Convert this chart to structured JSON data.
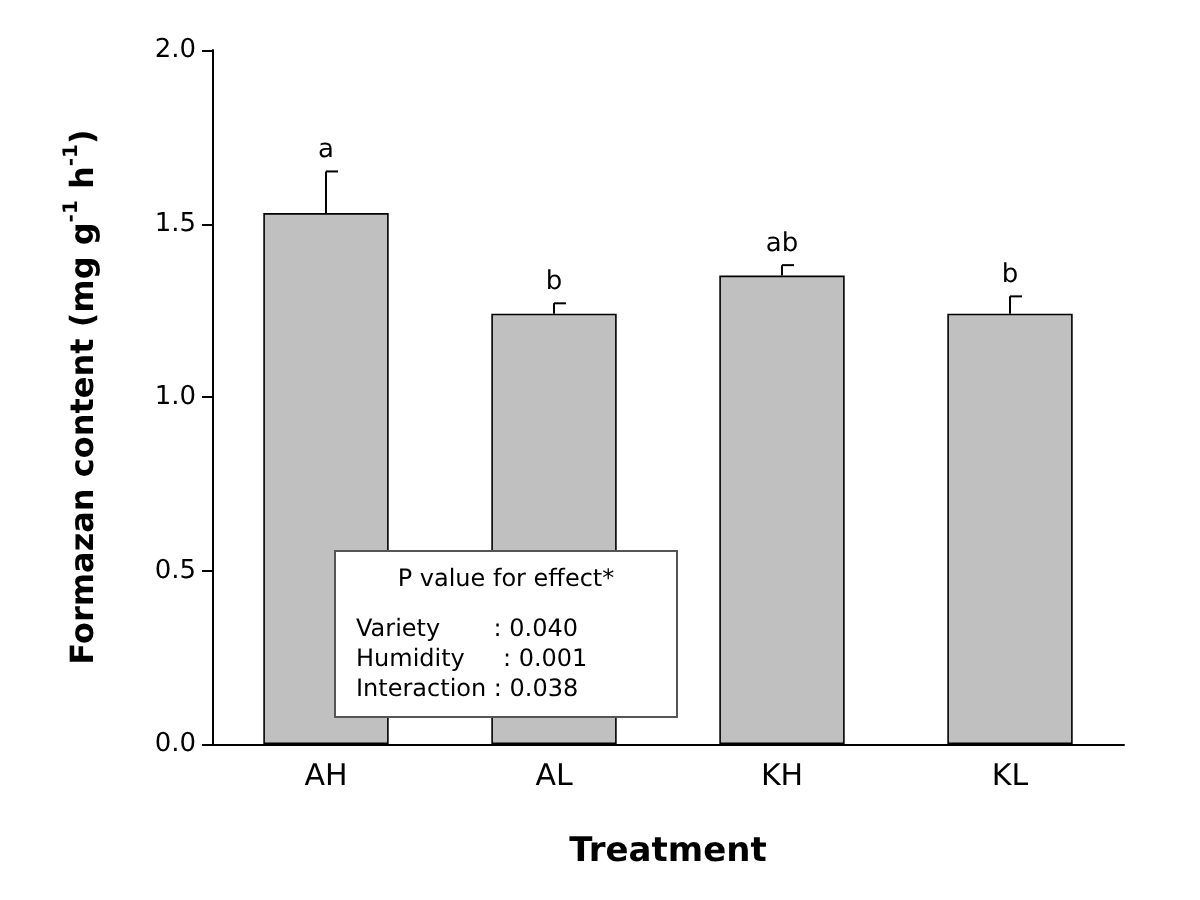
{
  "chart_data": {
    "type": "bar",
    "xlabel": "Treatment",
    "ylabel": "Formazan content (mg g$^{-1}$ h$^{-1}$)",
    "categories": [
      "AH",
      "AL",
      "KH",
      "KL"
    ],
    "values": [
      1.53,
      1.24,
      1.35,
      1.24
    ],
    "color": "#c0c0c0",
    "errors": [
      [
        1.53,
        1.65
      ],
      [
        1.24,
        1.27
      ],
      [
        1.35,
        1.38
      ],
      [
        1.24,
        1.29
      ]
    ],
    "ylim": [
      0,
      2
    ],
    "yticks": [
      {
        "value": 0,
        "label": "0.0"
      },
      {
        "value": 0.5,
        "label": "0.5"
      },
      {
        "value": 1,
        "label": "1.0"
      },
      {
        "value": 1.5,
        "label": "1.5"
      },
      {
        "value": 2,
        "label": "2.0"
      }
    ],
    "grid": false,
    "annotations": [
      {
        "text": "a",
        "x": "AH",
        "y": 1.65
      },
      {
        "text": "b",
        "x": "AL",
        "y": 1.27
      },
      {
        "text": "ab",
        "x": "KH",
        "y": 1.38
      },
      {
        "text": "b",
        "x": "KL",
        "y": 1.29
      },
      "P value for effect*",
      "Variety       : 0.040",
      "Humidity     : 0.001",
      "Interaction : 0.038"
    ]
  }
}
